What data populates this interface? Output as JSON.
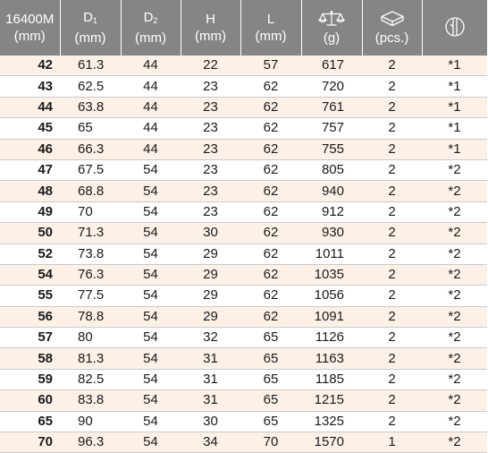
{
  "header": {
    "size": {
      "line1": "16400M",
      "line2": "(mm)"
    },
    "d1": {
      "letter": "D",
      "sub": "1",
      "unit": "(mm)"
    },
    "d2": {
      "letter": "D",
      "sub": "2",
      "unit": "(mm)"
    },
    "h": {
      "letter": "H",
      "unit": "(mm)"
    },
    "l": {
      "letter": "L",
      "unit": "(mm)"
    },
    "weight": {
      "icon": "scale-icon",
      "unit": "(g)"
    },
    "pack": {
      "icon": "box-icon",
      "unit": "(pcs.)"
    },
    "note": {
      "icon": "socket-profile-icon"
    }
  },
  "rows": [
    {
      "size": "42",
      "d1": "61.3",
      "d2": "44",
      "h": "22",
      "l": "57",
      "w": "617",
      "pcs": "2",
      "note": "*1"
    },
    {
      "size": "43",
      "d1": "62.5",
      "d2": "44",
      "h": "23",
      "l": "62",
      "w": "720",
      "pcs": "2",
      "note": "*1"
    },
    {
      "size": "44",
      "d1": "63.8",
      "d2": "44",
      "h": "23",
      "l": "62",
      "w": "761",
      "pcs": "2",
      "note": "*1"
    },
    {
      "size": "45",
      "d1": "65",
      "d2": "44",
      "h": "23",
      "l": "62",
      "w": "757",
      "pcs": "2",
      "note": "*1"
    },
    {
      "size": "46",
      "d1": "66.3",
      "d2": "44",
      "h": "23",
      "l": "62",
      "w": "755",
      "pcs": "2",
      "note": "*1"
    },
    {
      "size": "47",
      "d1": "67.5",
      "d2": "54",
      "h": "23",
      "l": "62",
      "w": "805",
      "pcs": "2",
      "note": "*2"
    },
    {
      "size": "48",
      "d1": "68.8",
      "d2": "54",
      "h": "23",
      "l": "62",
      "w": "940",
      "pcs": "2",
      "note": "*2"
    },
    {
      "size": "49",
      "d1": "70",
      "d2": "54",
      "h": "23",
      "l": "62",
      "w": "912",
      "pcs": "2",
      "note": "*2"
    },
    {
      "size": "50",
      "d1": "71.3",
      "d2": "54",
      "h": "30",
      "l": "62",
      "w": "930",
      "pcs": "2",
      "note": "*2"
    },
    {
      "size": "52",
      "d1": "73.8",
      "d2": "54",
      "h": "29",
      "l": "62",
      "w": "1011",
      "pcs": "2",
      "note": "*2"
    },
    {
      "size": "54",
      "d1": "76.3",
      "d2": "54",
      "h": "29",
      "l": "62",
      "w": "1035",
      "pcs": "2",
      "note": "*2"
    },
    {
      "size": "55",
      "d1": "77.5",
      "d2": "54",
      "h": "29",
      "l": "62",
      "w": "1056",
      "pcs": "2",
      "note": "*2"
    },
    {
      "size": "56",
      "d1": "78.8",
      "d2": "54",
      "h": "29",
      "l": "62",
      "w": "1091",
      "pcs": "2",
      "note": "*2"
    },
    {
      "size": "57",
      "d1": "80",
      "d2": "54",
      "h": "32",
      "l": "65",
      "w": "1126",
      "pcs": "2",
      "note": "*2"
    },
    {
      "size": "58",
      "d1": "81.3",
      "d2": "54",
      "h": "31",
      "l": "65",
      "w": "1163",
      "pcs": "2",
      "note": "*2"
    },
    {
      "size": "59",
      "d1": "82.5",
      "d2": "54",
      "h": "31",
      "l": "65",
      "w": "1185",
      "pcs": "2",
      "note": "*2"
    },
    {
      "size": "60",
      "d1": "83.8",
      "d2": "54",
      "h": "31",
      "l": "65",
      "w": "1215",
      "pcs": "2",
      "note": "*2"
    },
    {
      "size": "65",
      "d1": "90",
      "d2": "54",
      "h": "30",
      "l": "65",
      "w": "1325",
      "pcs": "2",
      "note": "*2"
    },
    {
      "size": "70",
      "d1": "96.3",
      "d2": "54",
      "h": "34",
      "l": "70",
      "w": "1570",
      "pcs": "1",
      "note": "*2"
    }
  ]
}
